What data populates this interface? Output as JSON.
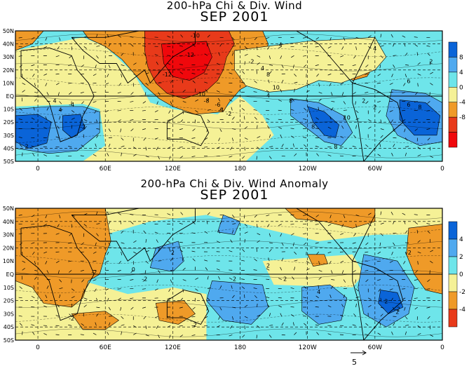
{
  "chart_data": [
    {
      "type": "heatmap",
      "title": "200-hPa Chi & Div. Wind",
      "subtitle": "SEP 2001",
      "x_tick_labels": [
        "0",
        "60E",
        "120E",
        "180",
        "120W",
        "60W",
        "0"
      ],
      "y_tick_labels": [
        "50N",
        "40N",
        "30N",
        "20N",
        "10N",
        "EQ",
        "10S",
        "20S",
        "30S",
        "40S",
        "50S"
      ],
      "xlim": [
        -20,
        360
      ],
      "ylim": [
        -50,
        50
      ],
      "colorbar_labels": [
        "8",
        "4",
        "0",
        "-4",
        "-8"
      ],
      "colorbar_colors": [
        "#0a64d8",
        "#4fa9ef",
        "#6ee5ea",
        "#f5f196",
        "#ef9a28",
        "#e83a1a",
        "#f0080c"
      ],
      "contour_labels": [
        "-10",
        "-12",
        "-12",
        "-10",
        "-8",
        "-6",
        "-4",
        "-2",
        "-2",
        "-4",
        "4",
        "8",
        "8",
        "8",
        "8",
        "10",
        "2",
        "8",
        "6",
        "2",
        "4",
        "4",
        "-2",
        "2",
        "-4",
        "4",
        "6",
        "10",
        "4",
        "2"
      ],
      "regions": [
        {
          "value": -4,
          "points": [
            [
              40,
              50
            ],
            [
              200,
              50
            ],
            [
              205,
              40
            ],
            [
              200,
              25
            ],
            [
              195,
              12
            ],
            [
              180,
              5
            ],
            [
              170,
              -5
            ],
            [
              165,
              -12
            ],
            [
              140,
              -14
            ],
            [
              120,
              -8
            ],
            [
              108,
              -2
            ],
            [
              95,
              8
            ],
            [
              85,
              18
            ],
            [
              75,
              28
            ],
            [
              60,
              38
            ],
            [
              45,
              44
            ]
          ]
        },
        {
          "value": -8,
          "points": [
            [
              95,
              50
            ],
            [
              170,
              50
            ],
            [
              175,
              40
            ],
            [
              168,
              30
            ],
            [
              165,
              20
            ],
            [
              160,
              12
            ],
            [
              150,
              4
            ],
            [
              130,
              -2
            ],
            [
              115,
              2
            ],
            [
              105,
              10
            ],
            [
              98,
              22
            ],
            [
              95,
              35
            ]
          ]
        },
        {
          "value": -12,
          "points": [
            [
              110,
              40
            ],
            [
              150,
              42
            ],
            [
              155,
              30
            ],
            [
              148,
              18
            ],
            [
              135,
              12
            ],
            [
              120,
              15
            ],
            [
              112,
              25
            ]
          ]
        },
        {
          "value": -4,
          "points": [
            [
              272,
              32
            ],
            [
              295,
              35
            ],
            [
              300,
              25
            ],
            [
              293,
              15
            ],
            [
              280,
              12
            ],
            [
              270,
              18
            ]
          ]
        },
        {
          "value": -2,
          "points": [
            [
              175,
              35
            ],
            [
              240,
              42
            ],
            [
              300,
              45
            ],
            [
              310,
              30
            ],
            [
              300,
              20
            ],
            [
              285,
              15
            ],
            [
              270,
              10
            ],
            [
              250,
              12
            ],
            [
              230,
              5
            ],
            [
              205,
              3
            ],
            [
              185,
              8
            ],
            [
              175,
              20
            ]
          ]
        },
        {
          "value": 4,
          "points": [
            [
              225,
              -2
            ],
            [
              250,
              -5
            ],
            [
              272,
              -15
            ],
            [
              280,
              -28
            ],
            [
              270,
              -38
            ],
            [
              255,
              -35
            ],
            [
              240,
              -25
            ],
            [
              225,
              -15
            ]
          ]
        },
        {
          "value": 8,
          "points": [
            [
              240,
              -8
            ],
            [
              255,
              -12
            ],
            [
              268,
              -22
            ],
            [
              265,
              -32
            ],
            [
              255,
              -30
            ],
            [
              245,
              -20
            ]
          ]
        },
        {
          "value": 4,
          "points": [
            [
              315,
              5
            ],
            [
              345,
              2
            ],
            [
              360,
              -5
            ],
            [
              360,
              -35
            ],
            [
              340,
              -38
            ],
            [
              320,
              -30
            ],
            [
              310,
              -15
            ]
          ]
        },
        {
          "value": 8,
          "points": [
            [
              322,
              -3
            ],
            [
              345,
              -5
            ],
            [
              358,
              -15
            ],
            [
              355,
              -30
            ],
            [
              335,
              -30
            ],
            [
              322,
              -18
            ]
          ]
        },
        {
          "value": 4,
          "points": [
            [
              -20,
              -10
            ],
            [
              10,
              -8
            ],
            [
              40,
              -8
            ],
            [
              55,
              -12
            ],
            [
              55,
              -28
            ],
            [
              35,
              -42
            ],
            [
              10,
              -44
            ],
            [
              -20,
              -40
            ]
          ]
        },
        {
          "value": 8,
          "points": [
            [
              -20,
              -15
            ],
            [
              0,
              -14
            ],
            [
              12,
              -20
            ],
            [
              8,
              -36
            ],
            [
              -8,
              -40
            ],
            [
              -20,
              -35
            ]
          ]
        },
        {
          "value": 8,
          "points": [
            [
              22,
              -15
            ],
            [
              38,
              -14
            ],
            [
              42,
              -25
            ],
            [
              30,
              -32
            ],
            [
              22,
              -26
            ]
          ]
        },
        {
          "value": -4,
          "points": [
            [
              -20,
              50
            ],
            [
              5,
              50
            ],
            [
              -5,
              40
            ],
            [
              -20,
              35
            ]
          ]
        }
      ]
    },
    {
      "type": "heatmap",
      "title": "200-hPa Chi & Div. Wind Anomaly",
      "subtitle": "SEP 2001",
      "x_tick_labels": [
        "0",
        "60E",
        "120E",
        "180",
        "120W",
        "60W",
        "0"
      ],
      "y_tick_labels": [
        "50N",
        "40N",
        "30N",
        "20N",
        "10N",
        "EQ",
        "10S",
        "20S",
        "30S",
        "40S",
        "50S"
      ],
      "xlim": [
        -20,
        360
      ],
      "ylim": [
        -50,
        50
      ],
      "colorbar_labels": [
        "4",
        "2",
        "0",
        "-2",
        "-4"
      ],
      "colorbar_colors": [
        "#0a64d8",
        "#4fa9ef",
        "#6ee5ea",
        "#f5f196",
        "#ef9a28",
        "#e83a1a"
      ],
      "contour_labels": [
        "-2",
        "0",
        "2",
        "-2",
        "-2",
        "2",
        "2",
        "2",
        "2",
        "4",
        "2",
        "-2",
        "-2",
        "2"
      ],
      "reference_vector_label": "5",
      "regions": [
        {
          "value": -2,
          "points": [
            [
              -20,
              50
            ],
            [
              60,
              50
            ],
            [
              62,
              40
            ],
            [
              65,
              25
            ],
            [
              60,
              15
            ],
            [
              55,
              0
            ],
            [
              45,
              -5
            ],
            [
              40,
              -18
            ],
            [
              30,
              -25
            ],
            [
              5,
              -22
            ],
            [
              -5,
              -10
            ],
            [
              -20,
              -5
            ]
          ]
        },
        {
          "value": -2,
          "points": [
            [
              330,
              35
            ],
            [
              360,
              38
            ],
            [
              360,
              -15
            ],
            [
              345,
              -12
            ],
            [
              335,
              0
            ],
            [
              328,
              15
            ]
          ]
        },
        {
          "value": -2,
          "points": [
            [
              30,
              -30
            ],
            [
              60,
              -28
            ],
            [
              72,
              -35
            ],
            [
              60,
              -42
            ],
            [
              40,
              -42
            ]
          ]
        },
        {
          "value": -2,
          "points": [
            [
              105,
              -22
            ],
            [
              130,
              -20
            ],
            [
              140,
              -30
            ],
            [
              125,
              -38
            ],
            [
              108,
              -35
            ]
          ]
        },
        {
          "value": -2,
          "points": [
            [
              240,
              15
            ],
            [
              255,
              15
            ],
            [
              258,
              8
            ],
            [
              245,
              6
            ]
          ]
        },
        {
          "value": 2,
          "points": [
            [
              155,
              -5
            ],
            [
              200,
              -8
            ],
            [
              205,
              -25
            ],
            [
              190,
              -38
            ],
            [
              165,
              -35
            ],
            [
              150,
              -20
            ]
          ]
        },
        {
          "value": 2,
          "points": [
            [
              235,
              -10
            ],
            [
              260,
              -8
            ],
            [
              275,
              -18
            ],
            [
              270,
              -35
            ],
            [
              250,
              -38
            ],
            [
              235,
              -28
            ]
          ]
        },
        {
          "value": 2,
          "points": [
            [
              290,
              15
            ],
            [
              320,
              10
            ],
            [
              335,
              -10
            ],
            [
              330,
              -30
            ],
            [
              310,
              -40
            ],
            [
              290,
              -30
            ],
            [
              285,
              -10
            ]
          ]
        },
        {
          "value": 4,
          "points": [
            [
              305,
              -12
            ],
            [
              320,
              -14
            ],
            [
              325,
              -25
            ],
            [
              312,
              -30
            ],
            [
              303,
              -22
            ]
          ]
        },
        {
          "value": 2,
          "points": [
            [
              165,
              45
            ],
            [
              180,
              40
            ],
            [
              175,
              30
            ],
            [
              160,
              32
            ]
          ]
        },
        {
          "value": 2,
          "points": [
            [
              105,
              20
            ],
            [
              125,
              25
            ],
            [
              130,
              10
            ],
            [
              120,
              2
            ],
            [
              100,
              5
            ]
          ]
        },
        {
          "value": -2,
          "points": [
            [
              220,
              50
            ],
            [
              300,
              50
            ],
            [
              300,
              40
            ],
            [
              280,
              35
            ],
            [
              255,
              40
            ],
            [
              230,
              42
            ]
          ]
        }
      ]
    }
  ],
  "reference_vector": {
    "label": "5"
  }
}
